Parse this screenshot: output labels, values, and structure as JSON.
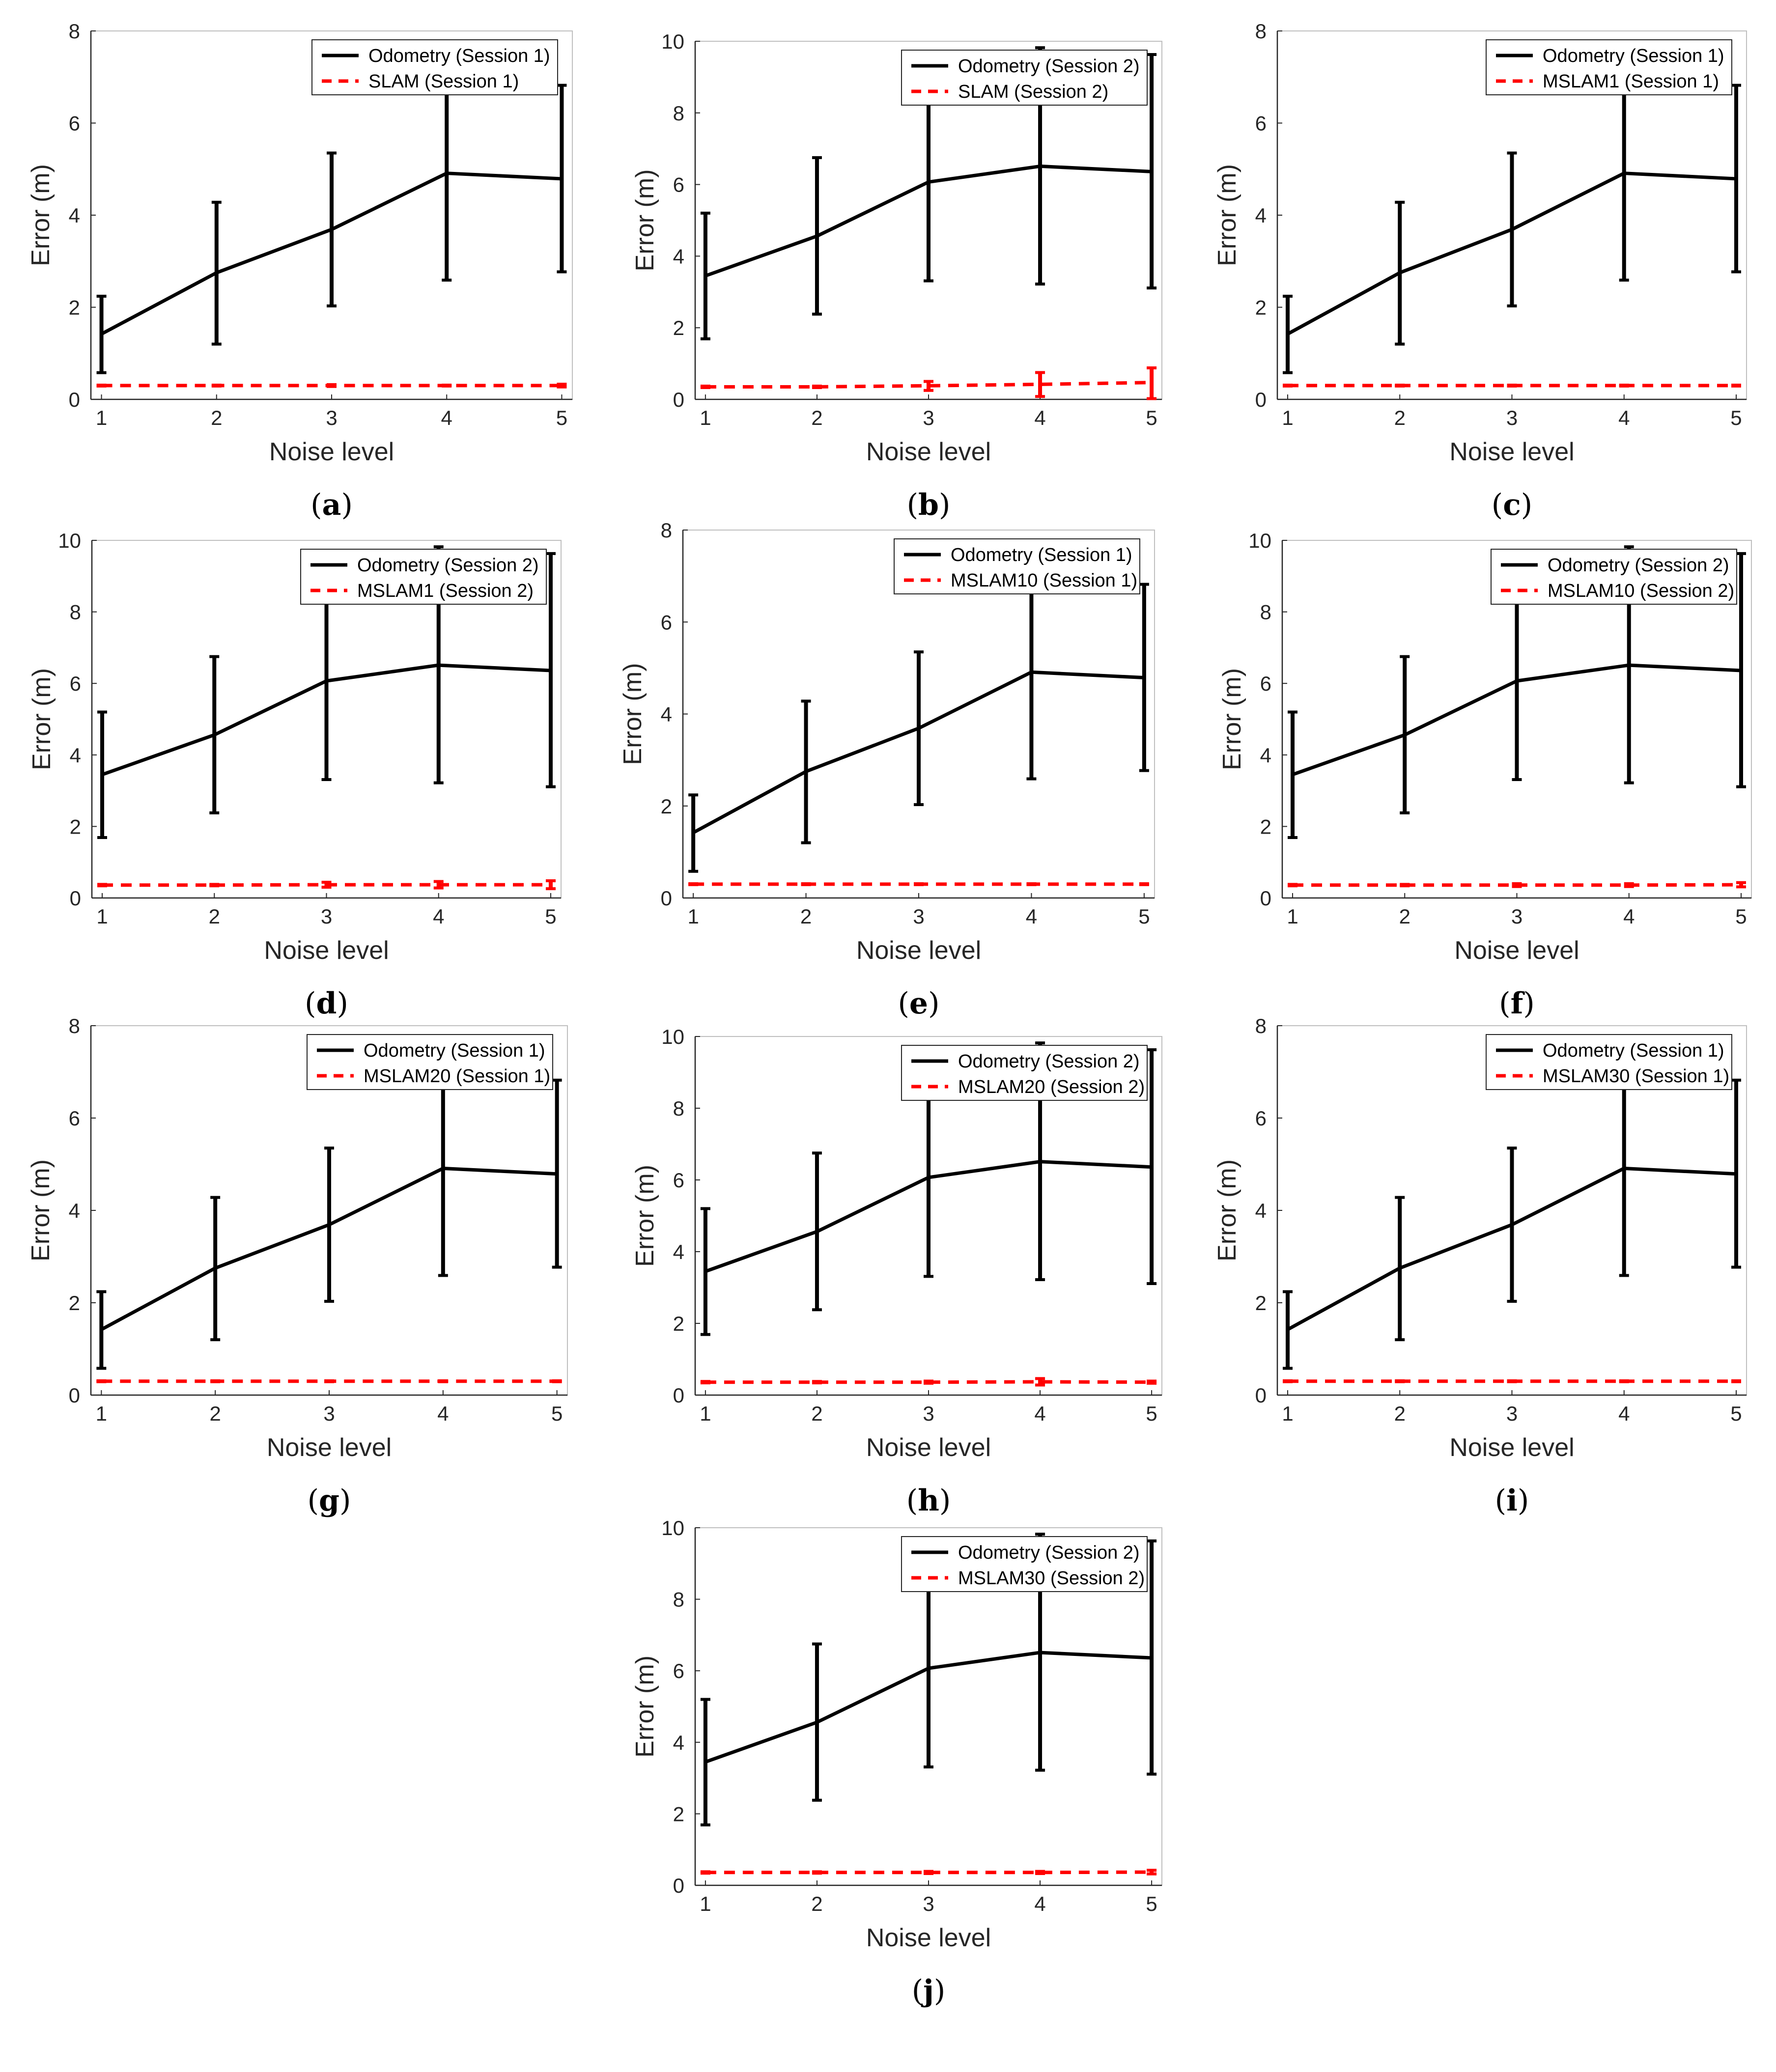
{
  "colors": {
    "odometry": "#000000",
    "slam": "#ff0000",
    "axis": "#262626",
    "frame": "#bfbfbf"
  },
  "chart_data": [
    {
      "panel": "a",
      "type": "line",
      "xlabel": "Noise level",
      "ylabel": "Error (m)",
      "categories": [
        1,
        2,
        3,
        4,
        5
      ],
      "ylim": [
        0,
        8
      ],
      "yticks": [
        0,
        2,
        4,
        6,
        8
      ],
      "legend_position": "top-right",
      "series": [
        {
          "name": "Odometry (Session 1)",
          "style": "solid",
          "values": [
            1.42,
            2.75,
            3.69,
            4.91,
            4.79
          ],
          "err_low": [
            0.58,
            1.2,
            2.03,
            2.59,
            2.77
          ],
          "err_high": [
            2.24,
            4.28,
            5.35,
            6.9,
            6.82
          ]
        },
        {
          "name": "SLAM (Session 1)",
          "style": "dashed",
          "values": [
            0.3,
            0.3,
            0.3,
            0.3,
            0.3
          ],
          "err_low": [
            0.29,
            0.29,
            0.28,
            0.29,
            0.27
          ],
          "err_high": [
            0.31,
            0.31,
            0.32,
            0.31,
            0.33
          ]
        }
      ]
    },
    {
      "panel": "b",
      "type": "line",
      "xlabel": "Noise level",
      "ylabel": "Error (m)",
      "categories": [
        1,
        2,
        3,
        4,
        5
      ],
      "ylim": [
        0,
        10
      ],
      "yticks": [
        0,
        2,
        4,
        6,
        8,
        10
      ],
      "legend_position": "top-right",
      "series": [
        {
          "name": "Odometry (Session 2)",
          "style": "solid",
          "values": [
            3.45,
            4.56,
            6.07,
            6.51,
            6.36
          ],
          "err_low": [
            1.69,
            2.38,
            3.31,
            3.22,
            3.11
          ],
          "err_high": [
            5.2,
            6.75,
            8.83,
            9.82,
            9.63
          ]
        },
        {
          "name": "SLAM (Session 2)",
          "style": "dashed",
          "values": [
            0.35,
            0.35,
            0.38,
            0.42,
            0.47
          ],
          "err_low": [
            0.33,
            0.33,
            0.25,
            0.08,
            0.02
          ],
          "err_high": [
            0.37,
            0.37,
            0.5,
            0.75,
            0.88
          ]
        }
      ]
    },
    {
      "panel": "c",
      "type": "line",
      "xlabel": "Noise level",
      "ylabel": "Error (m)",
      "categories": [
        1,
        2,
        3,
        4,
        5
      ],
      "ylim": [
        0,
        8
      ],
      "yticks": [
        0,
        2,
        4,
        6,
        8
      ],
      "legend_position": "top-right",
      "series": [
        {
          "name": "Odometry (Session 1)",
          "style": "solid",
          "values": [
            1.42,
            2.75,
            3.69,
            4.91,
            4.79
          ],
          "err_low": [
            0.58,
            1.2,
            2.03,
            2.59,
            2.77
          ],
          "err_high": [
            2.24,
            4.28,
            5.35,
            6.9,
            6.82
          ]
        },
        {
          "name": "MSLAM1 (Session 1)",
          "style": "dashed",
          "values": [
            0.3,
            0.3,
            0.3,
            0.3,
            0.3
          ],
          "err_low": [
            0.29,
            0.29,
            0.29,
            0.29,
            0.29
          ],
          "err_high": [
            0.31,
            0.31,
            0.31,
            0.31,
            0.31
          ]
        }
      ]
    },
    {
      "panel": "d",
      "type": "line",
      "xlabel": "Noise level",
      "ylabel": "Error (m)",
      "categories": [
        1,
        2,
        3,
        4,
        5
      ],
      "ylim": [
        0,
        10
      ],
      "yticks": [
        0,
        2,
        4,
        6,
        8,
        10
      ],
      "legend_position": "top-right",
      "series": [
        {
          "name": "Odometry (Session 2)",
          "style": "solid",
          "values": [
            3.45,
            4.56,
            6.07,
            6.51,
            6.36
          ],
          "err_low": [
            1.69,
            2.38,
            3.31,
            3.22,
            3.11
          ],
          "err_high": [
            5.2,
            6.75,
            8.83,
            9.82,
            9.63
          ]
        },
        {
          "name": "MSLAM1 (Session 2)",
          "style": "dashed",
          "values": [
            0.36,
            0.36,
            0.37,
            0.37,
            0.37
          ],
          "err_low": [
            0.34,
            0.34,
            0.3,
            0.28,
            0.26
          ],
          "err_high": [
            0.38,
            0.38,
            0.44,
            0.46,
            0.48
          ]
        }
      ]
    },
    {
      "panel": "e",
      "type": "line",
      "xlabel": "Noise level",
      "ylabel": "Error (m)",
      "categories": [
        1,
        2,
        3,
        4,
        5
      ],
      "ylim": [
        0,
        8
      ],
      "yticks": [
        0,
        2,
        4,
        6,
        8
      ],
      "legend_position": "top-right",
      "series": [
        {
          "name": "Odometry (Session 1)",
          "style": "solid",
          "values": [
            1.42,
            2.75,
            3.69,
            4.91,
            4.79
          ],
          "err_low": [
            0.58,
            1.2,
            2.03,
            2.59,
            2.77
          ],
          "err_high": [
            2.24,
            4.28,
            5.35,
            6.9,
            6.82
          ]
        },
        {
          "name": "MSLAM10 (Session 1)",
          "style": "dashed",
          "values": [
            0.3,
            0.3,
            0.3,
            0.3,
            0.3
          ],
          "err_low": [
            0.29,
            0.29,
            0.29,
            0.29,
            0.29
          ],
          "err_high": [
            0.31,
            0.31,
            0.31,
            0.31,
            0.31
          ]
        }
      ]
    },
    {
      "panel": "f",
      "type": "line",
      "xlabel": "Noise level",
      "ylabel": "Error (m)",
      "categories": [
        1,
        2,
        3,
        4,
        5
      ],
      "ylim": [
        0,
        10
      ],
      "yticks": [
        0,
        2,
        4,
        6,
        8,
        10
      ],
      "legend_position": "top-right",
      "series": [
        {
          "name": "Odometry (Session 2)",
          "style": "solid",
          "values": [
            3.45,
            4.56,
            6.07,
            6.51,
            6.36
          ],
          "err_low": [
            1.69,
            2.38,
            3.31,
            3.22,
            3.11
          ],
          "err_high": [
            5.2,
            6.75,
            8.83,
            9.82,
            9.63
          ]
        },
        {
          "name": "MSLAM10 (Session 2)",
          "style": "dashed",
          "values": [
            0.36,
            0.36,
            0.36,
            0.36,
            0.37
          ],
          "err_low": [
            0.34,
            0.34,
            0.32,
            0.32,
            0.31
          ],
          "err_high": [
            0.38,
            0.38,
            0.4,
            0.4,
            0.43
          ]
        }
      ]
    },
    {
      "panel": "g",
      "type": "line",
      "xlabel": "Noise level",
      "ylabel": "Error (m)",
      "categories": [
        1,
        2,
        3,
        4,
        5
      ],
      "ylim": [
        0,
        8
      ],
      "yticks": [
        0,
        2,
        4,
        6,
        8
      ],
      "legend_position": "top-right",
      "series": [
        {
          "name": "Odometry (Session 1)",
          "style": "solid",
          "values": [
            1.42,
            2.75,
            3.69,
            4.91,
            4.79
          ],
          "err_low": [
            0.58,
            1.2,
            2.03,
            2.59,
            2.77
          ],
          "err_high": [
            2.24,
            4.28,
            5.35,
            6.9,
            6.82
          ]
        },
        {
          "name": "MSLAM20 (Session 1)",
          "style": "dashed",
          "values": [
            0.3,
            0.3,
            0.3,
            0.3,
            0.3
          ],
          "err_low": [
            0.29,
            0.29,
            0.29,
            0.29,
            0.29
          ],
          "err_high": [
            0.31,
            0.31,
            0.31,
            0.31,
            0.31
          ]
        }
      ]
    },
    {
      "panel": "h",
      "type": "line",
      "xlabel": "Noise level",
      "ylabel": "Error (m)",
      "categories": [
        1,
        2,
        3,
        4,
        5
      ],
      "ylim": [
        0,
        10
      ],
      "yticks": [
        0,
        2,
        4,
        6,
        8,
        10
      ],
      "legend_position": "top-right",
      "series": [
        {
          "name": "Odometry (Session 2)",
          "style": "solid",
          "values": [
            3.45,
            4.56,
            6.07,
            6.51,
            6.36
          ],
          "err_low": [
            1.69,
            2.38,
            3.31,
            3.22,
            3.11
          ],
          "err_high": [
            5.2,
            6.75,
            8.83,
            9.82,
            9.63
          ]
        },
        {
          "name": "MSLAM20 (Session 2)",
          "style": "dashed",
          "values": [
            0.36,
            0.36,
            0.36,
            0.37,
            0.36
          ],
          "err_low": [
            0.34,
            0.34,
            0.33,
            0.28,
            0.33
          ],
          "err_high": [
            0.38,
            0.38,
            0.39,
            0.46,
            0.39
          ]
        }
      ]
    },
    {
      "panel": "i",
      "type": "line",
      "xlabel": "Noise level",
      "ylabel": "Error (m)",
      "categories": [
        1,
        2,
        3,
        4,
        5
      ],
      "ylim": [
        0,
        8
      ],
      "yticks": [
        0,
        2,
        4,
        6,
        8
      ],
      "legend_position": "top-right",
      "series": [
        {
          "name": "Odometry (Session 1)",
          "style": "solid",
          "values": [
            1.42,
            2.75,
            3.69,
            4.91,
            4.79
          ],
          "err_low": [
            0.58,
            1.2,
            2.03,
            2.59,
            2.77
          ],
          "err_high": [
            2.24,
            4.28,
            5.35,
            6.9,
            6.82
          ]
        },
        {
          "name": "MSLAM30 (Session 1)",
          "style": "dashed",
          "values": [
            0.3,
            0.3,
            0.3,
            0.3,
            0.3
          ],
          "err_low": [
            0.29,
            0.29,
            0.29,
            0.29,
            0.29
          ],
          "err_high": [
            0.31,
            0.31,
            0.31,
            0.31,
            0.31
          ]
        }
      ]
    },
    {
      "panel": "j",
      "type": "line",
      "xlabel": "Noise level",
      "ylabel": "Error (m)",
      "categories": [
        1,
        2,
        3,
        4,
        5
      ],
      "ylim": [
        0,
        10
      ],
      "yticks": [
        0,
        2,
        4,
        6,
        8,
        10
      ],
      "legend_position": "top-right",
      "series": [
        {
          "name": "Odometry (Session 2)",
          "style": "solid",
          "values": [
            3.45,
            4.56,
            6.07,
            6.51,
            6.36
          ],
          "err_low": [
            1.69,
            2.38,
            3.31,
            3.22,
            3.11
          ],
          "err_high": [
            5.2,
            6.75,
            8.83,
            9.82,
            9.63
          ]
        },
        {
          "name": "MSLAM30 (Session 2)",
          "style": "dashed",
          "values": [
            0.36,
            0.36,
            0.36,
            0.36,
            0.37
          ],
          "err_low": [
            0.34,
            0.34,
            0.33,
            0.33,
            0.32
          ],
          "err_high": [
            0.38,
            0.38,
            0.39,
            0.39,
            0.42
          ]
        }
      ]
    }
  ]
}
